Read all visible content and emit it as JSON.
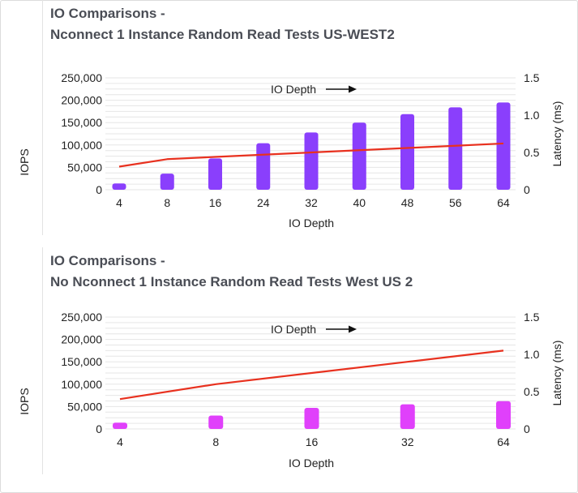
{
  "colors": {
    "bar_top": "#8a3ffc",
    "bar_bottom": "#e040fb",
    "line": "#e8311f",
    "grid": "#e6e6e6",
    "text": "#222222",
    "title": "#4a4d55"
  },
  "charts": [
    {
      "title_line1": "IO Comparisons -",
      "title_line2": "Nconnect 1 Instance Random Read Tests US-WEST2",
      "annotation": "IO Depth"
    },
    {
      "title_line1": "IO Comparisons -",
      "title_line2": "No Nconnect 1 Instance Random Read Tests West US 2",
      "annotation": "IO Depth"
    }
  ],
  "chart_data": [
    {
      "type": "bar",
      "title": "IO Comparisons - Nconnect 1 Instance Random Read Tests US-WEST2",
      "categories": [
        "4",
        "8",
        "16",
        "24",
        "32",
        "40",
        "48",
        "56",
        "64"
      ],
      "series": [
        {
          "axis": "left",
          "type": "bar",
          "values": [
            14000,
            36000,
            70000,
            104000,
            128000,
            150000,
            169000,
            184000,
            195000
          ]
        },
        {
          "axis": "right",
          "type": "line",
          "values": [
            0.31,
            0.41,
            0.44,
            0.47,
            0.5,
            0.53,
            0.56,
            0.59,
            0.62
          ]
        }
      ],
      "xlabel": "IO Depth",
      "ylabel": "IOPS",
      "y2label": "Latency (ms)",
      "ylim": [
        0,
        250000
      ],
      "y2lim": [
        0,
        1.5
      ],
      "yticks": [
        "0",
        "50,000",
        "100,000",
        "150,000",
        "200,000",
        "250,000"
      ],
      "y2ticks": [
        "0",
        "0.5",
        "1.0",
        "1.5"
      ],
      "grid": true,
      "annotation": "IO Depth"
    },
    {
      "type": "bar",
      "title": "IO Comparisons - No Nconnect 1 Instance Random Read Tests West US 2",
      "categories": [
        "4",
        "8",
        "16",
        "32",
        "64"
      ],
      "series": [
        {
          "axis": "left",
          "type": "bar",
          "values": [
            14000,
            30000,
            47000,
            55000,
            62000
          ]
        },
        {
          "axis": "right",
          "type": "line",
          "values": [
            0.4,
            0.6,
            0.75,
            0.9,
            1.05
          ]
        }
      ],
      "xlabel": "IO Depth",
      "ylabel": "IOPS",
      "y2label": "Latency (ms)",
      "ylim": [
        0,
        250000
      ],
      "y2lim": [
        0,
        1.5
      ],
      "yticks": [
        "0",
        "50,000",
        "100,000",
        "150,000",
        "200,000",
        "250,000"
      ],
      "y2ticks": [
        "0",
        "0.5",
        "1.0",
        "1.5"
      ],
      "grid": true,
      "annotation": "IO Depth"
    }
  ]
}
